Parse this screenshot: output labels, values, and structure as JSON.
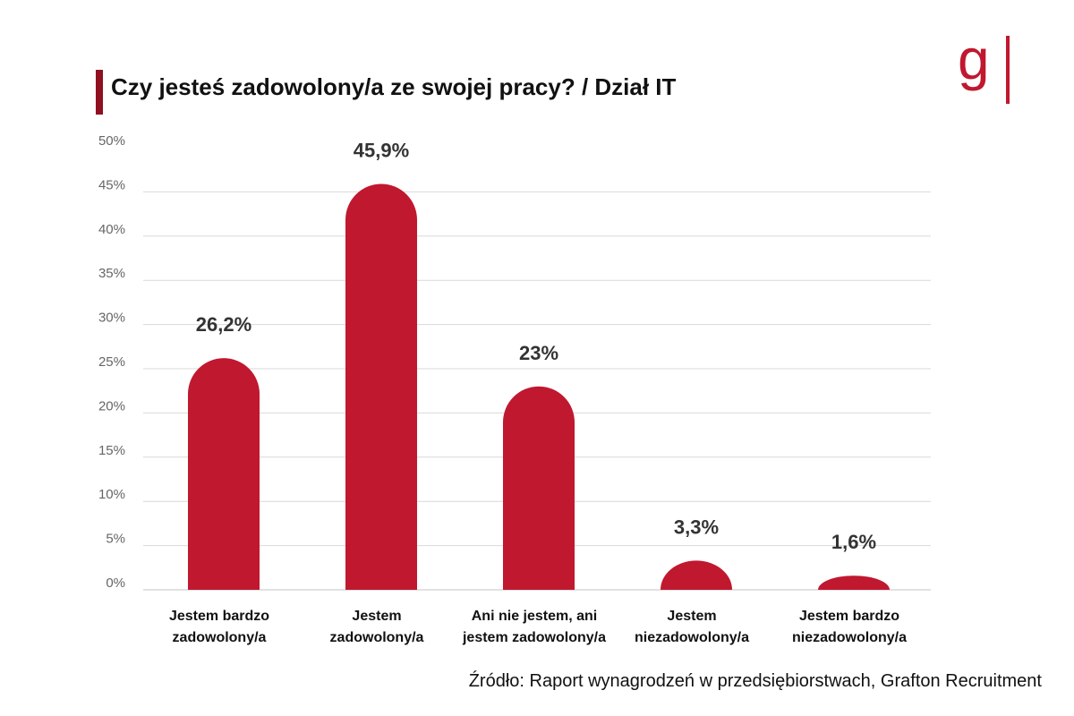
{
  "colors": {
    "bar": "#c0182f",
    "accent": "#8f1020",
    "grid": "#d9d9d9",
    "tick": "#666666",
    "label": "#111111"
  },
  "logo": {
    "text": "g",
    "icon": "grafton-logo"
  },
  "footer": {
    "source": "Źródło: Raport wynagrodzeń w  przedsiębiorstwach, Grafton Recruitment"
  },
  "chart_data": {
    "type": "bar",
    "title": "Czy jesteś zadowolony/a ze swojej pracy? / Dział IT",
    "xlabel": "",
    "ylabel": "",
    "ylim": [
      0,
      50
    ],
    "grid": true,
    "yticks": [
      "0%",
      "5%",
      "10%",
      "15%",
      "20%",
      "25%",
      "30%",
      "35%",
      "40%",
      "45%",
      "50%"
    ],
    "categories": [
      [
        "Jestem bardzo",
        "zadowolony/a"
      ],
      [
        "Jestem",
        "zadowolony/a"
      ],
      [
        "Ani nie jestem, ani",
        "jestem zadowolony/a"
      ],
      [
        "Jestem",
        "niezadowolony/a"
      ],
      [
        "Jestem bardzo",
        "niezadowolony/a"
      ]
    ],
    "values": [
      26.2,
      45.9,
      23,
      3.3,
      1.6
    ],
    "value_labels": [
      "26,2%",
      "45,9%",
      "23%",
      "3,3%",
      "1,6%"
    ]
  }
}
